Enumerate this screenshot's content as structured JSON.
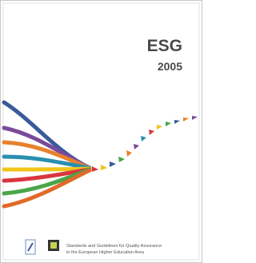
{
  "cover": {
    "title": "ESG",
    "year": "2005",
    "footer_lines": [
      "Standards and Guidelines for Quality Assurance",
      "in the European Higher Education Area"
    ]
  }
}
